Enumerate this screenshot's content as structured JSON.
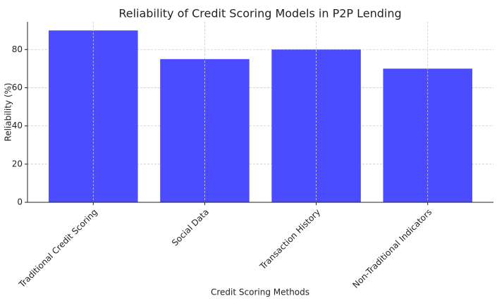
{
  "chart_data": {
    "type": "bar",
    "title": "Reliability of Credit Scoring Models in P2P Lending",
    "x_label": "Credit Scoring Methods",
    "y_label": "Reliability (%)",
    "categories": [
      "Traditional Credit Scoring",
      "Social Data",
      "Transaction History",
      "Non-Traditional Indicators"
    ],
    "values": [
      90,
      75,
      80,
      70
    ],
    "color": "#4b4bff",
    "ylim": [
      0,
      94.5
    ],
    "yticks": [
      0,
      20,
      40,
      60,
      80
    ],
    "grid": true
  }
}
